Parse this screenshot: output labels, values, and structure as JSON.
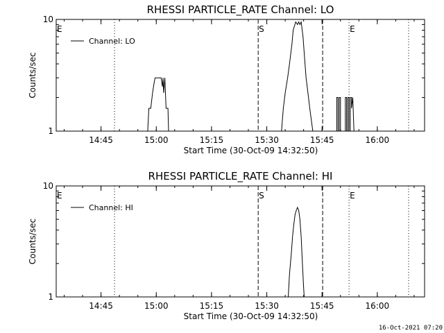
{
  "footer": {
    "timestamp": "16-Oct-2021 07:20"
  },
  "chart_data": [
    {
      "type": "line",
      "title": "RHESSI PARTICLE_RATE Channel: LO",
      "xlabel": "Start Time (30-Oct-09 14:32:50)",
      "ylabel": "Counts/sec",
      "yscale": "log",
      "ylim": [
        1,
        10
      ],
      "xlim": [
        "14:32:50",
        "16:12:50"
      ],
      "x_tick_labels": [
        "14:45",
        "15:00",
        "15:15",
        "15:30",
        "15:45",
        "16:00"
      ],
      "y_tick_labels": [
        "1",
        "10"
      ],
      "legend": {
        "position": "top-left",
        "entries": [
          "Channel: LO"
        ]
      },
      "markers": [
        {
          "label": "E",
          "x": "14:32:50",
          "style": "dotted"
        },
        {
          "label": "",
          "x": "14:48:40",
          "style": "dotted"
        },
        {
          "label": "S",
          "x": "15:27:40",
          "style": "dashed"
        },
        {
          "label": "",
          "x": "15:45:10",
          "style": "dashed"
        },
        {
          "label": "E",
          "x": "15:52:20",
          "style": "dotted"
        },
        {
          "label": "",
          "x": "16:08:30",
          "style": "dotted"
        }
      ],
      "series": [
        {
          "name": "Channel: LO",
          "points": [
            [
              "14:32:50",
              1
            ],
            [
              "14:57:40",
              1
            ],
            [
              "14:58:00",
              1.6
            ],
            [
              "14:58:30",
              1.6
            ],
            [
              "14:59:00",
              2.2
            ],
            [
              "14:59:20",
              2.6
            ],
            [
              "14:59:40",
              3.0
            ],
            [
              "15:00:20",
              3.0
            ],
            [
              "15:01:20",
              3.0
            ],
            [
              "15:01:40",
              2.5
            ],
            [
              "15:01:50",
              3.0
            ],
            [
              "15:02:00",
              2.2
            ],
            [
              "15:02:20",
              3.0
            ],
            [
              "15:02:40",
              1.6
            ],
            [
              "15:03:10",
              1.6
            ],
            [
              "15:03:20",
              1
            ],
            [
              "15:34:00",
              1
            ],
            [
              "15:34:30",
              1.6
            ],
            [
              "15:35:00",
              2.2
            ],
            [
              "15:35:40",
              3.0
            ],
            [
              "15:36:10",
              4.0
            ],
            [
              "15:36:50",
              6.0
            ],
            [
              "15:37:10",
              8.0
            ],
            [
              "15:37:50",
              9.5
            ],
            [
              "15:38:20",
              9.0
            ],
            [
              "15:38:40",
              9.5
            ],
            [
              "15:39:00",
              9.0
            ],
            [
              "15:39:20",
              9.5
            ],
            [
              "15:39:50",
              7.0
            ],
            [
              "15:40:10",
              5.0
            ],
            [
              "15:40:40",
              3.0
            ],
            [
              "15:41:10",
              2.2
            ],
            [
              "15:41:40",
              1.6
            ],
            [
              "15:42:10",
              1.2
            ],
            [
              "15:42:30",
              1
            ],
            [
              "15:49:00",
              1
            ],
            [
              "15:49:00",
              2.0
            ],
            [
              "15:49:20",
              2.0
            ],
            [
              "15:49:20",
              1
            ],
            [
              "15:49:40",
              1
            ],
            [
              "15:49:40",
              2.0
            ],
            [
              "15:50:00",
              2.0
            ],
            [
              "15:50:00",
              1
            ],
            [
              "15:51:20",
              1
            ],
            [
              "15:51:20",
              2.0
            ],
            [
              "15:51:40",
              2.0
            ],
            [
              "15:51:40",
              1
            ],
            [
              "15:52:00",
              1
            ],
            [
              "15:52:00",
              2.0
            ],
            [
              "15:52:20",
              2.0
            ],
            [
              "15:52:20",
              1
            ],
            [
              "15:52:40",
              1
            ],
            [
              "15:52:40",
              2.0
            ],
            [
              "15:53:00",
              2.0
            ],
            [
              "15:53:00",
              1.6
            ],
            [
              "15:53:20",
              2.0
            ],
            [
              "15:53:40",
              1
            ],
            [
              "16:12:50",
              1
            ]
          ]
        }
      ]
    },
    {
      "type": "line",
      "title": "RHESSI PARTICLE_RATE Channel: HI",
      "xlabel": "Start Time (30-Oct-09 14:32:50)",
      "ylabel": "Counts/sec",
      "yscale": "log",
      "ylim": [
        1,
        10
      ],
      "xlim": [
        "14:32:50",
        "16:12:50"
      ],
      "x_tick_labels": [
        "14:45",
        "15:00",
        "15:15",
        "15:30",
        "15:45",
        "16:00"
      ],
      "y_tick_labels": [
        "1",
        "10"
      ],
      "legend": {
        "position": "top-left",
        "entries": [
          "Channel: HI"
        ]
      },
      "markers": [
        {
          "label": "E",
          "x": "14:32:50",
          "style": "dotted"
        },
        {
          "label": "",
          "x": "14:48:40",
          "style": "dotted"
        },
        {
          "label": "S",
          "x": "15:27:40",
          "style": "dashed"
        },
        {
          "label": "",
          "x": "15:45:10",
          "style": "dashed"
        },
        {
          "label": "E",
          "x": "15:52:20",
          "style": "dotted"
        },
        {
          "label": "",
          "x": "16:08:30",
          "style": "dotted"
        }
      ],
      "series": [
        {
          "name": "Channel: HI",
          "points": [
            [
              "14:32:50",
              1
            ],
            [
              "15:35:50",
              1
            ],
            [
              "15:36:10",
              1.6
            ],
            [
              "15:36:40",
              2.5
            ],
            [
              "15:37:00",
              3.5
            ],
            [
              "15:37:20",
              4.5
            ],
            [
              "15:37:40",
              5.5
            ],
            [
              "15:38:00",
              6.0
            ],
            [
              "15:38:20",
              6.4
            ],
            [
              "15:38:40",
              6.0
            ],
            [
              "15:39:00",
              5.0
            ],
            [
              "15:39:20",
              3.5
            ],
            [
              "15:39:40",
              2.0
            ],
            [
              "15:40:00",
              1.2
            ],
            [
              "15:40:10",
              1
            ],
            [
              "16:12:50",
              1
            ]
          ]
        }
      ]
    }
  ]
}
